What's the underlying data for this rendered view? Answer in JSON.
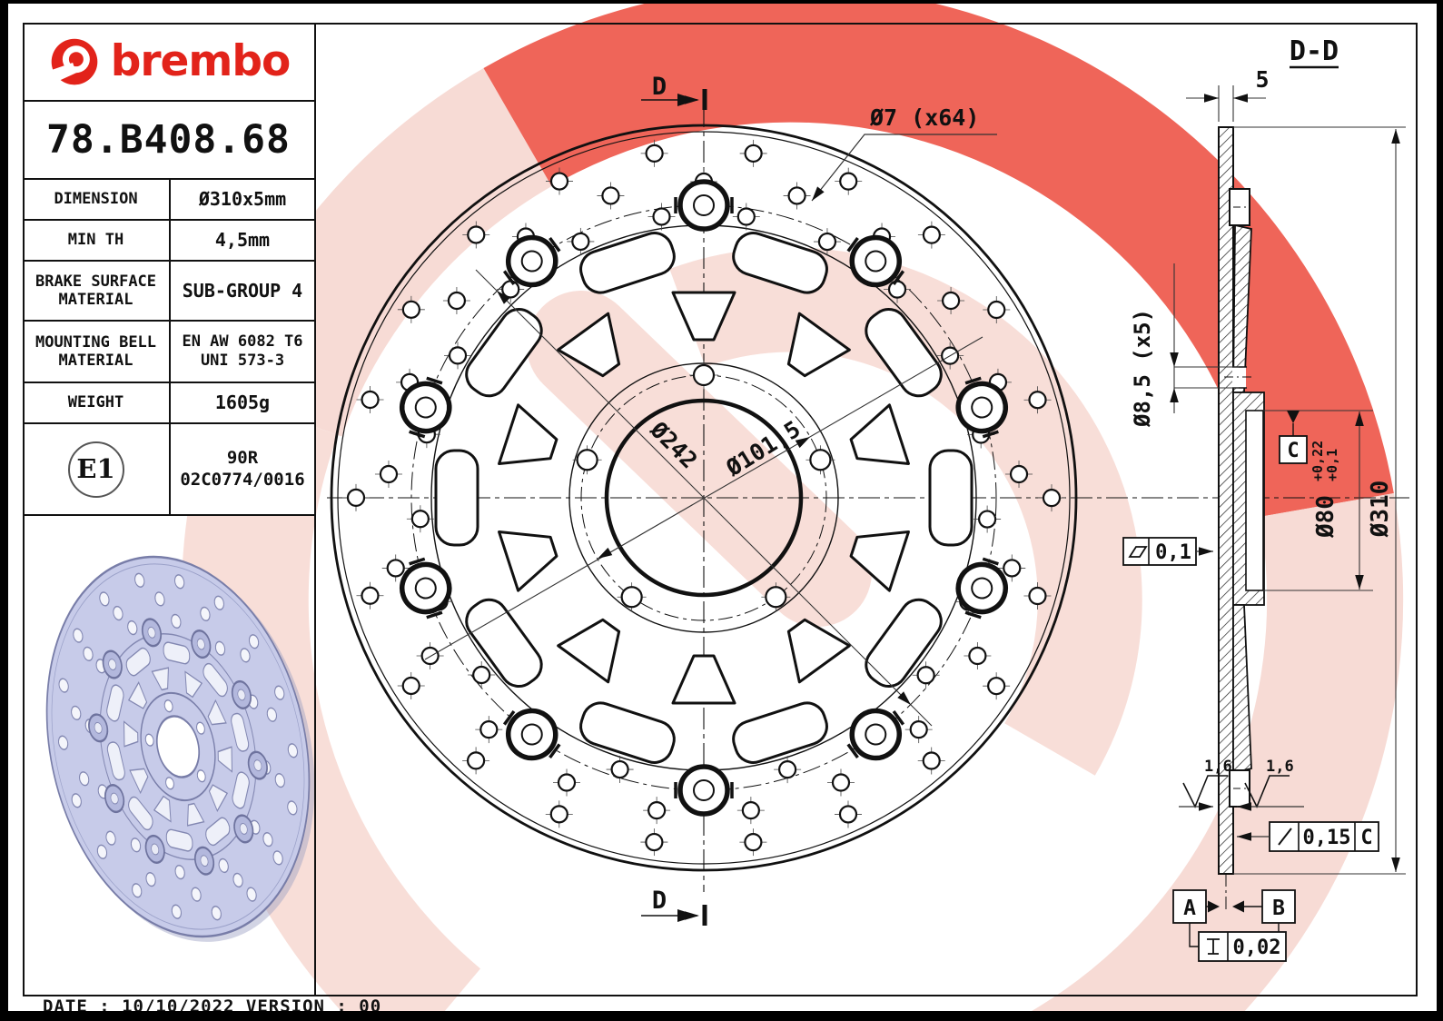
{
  "brand": {
    "name": "brembo",
    "part_number": "78.B408.68"
  },
  "spec_table": {
    "rows": [
      {
        "label": "DIMENSION",
        "value": "Ø310x5mm"
      },
      {
        "label": "MIN TH",
        "value": "4,5mm"
      },
      {
        "label": "BRAKE SURFACE\nMATERIAL",
        "value": "SUB-GROUP 4"
      },
      {
        "label": "MOUNTING BELL\nMATERIAL",
        "value": "EN AW 6082 T6\nUNI 573-3"
      },
      {
        "label": "WEIGHT",
        "value": "1605g"
      }
    ],
    "homologation": {
      "mark": "E1",
      "value": "90R\n02C0774/0016"
    }
  },
  "front_view": {
    "section_cut_top": "D",
    "section_cut_bottom": "D",
    "hole_callout": "Ø7 (x64)",
    "bobbin_pitch_dia": "Ø242",
    "bolt_circle_dia": "Ø101,5"
  },
  "section_view": {
    "title": "D-D",
    "disc_thickness": "5",
    "bell_hole_callout": "Ø8,5 (x5)",
    "bore_dia": "Ø80",
    "bore_tol_upper": "+0,22",
    "bore_tol_lower": "+0,1",
    "outer_dia": "Ø310",
    "flatness_tol": "0,1",
    "roughness_left": "1,6",
    "roughness_right": "1,6",
    "runout_tol": "0,15",
    "runout_datum": "C",
    "datum_c_label": "C",
    "datum_a_label": "A",
    "datum_b_label": "B",
    "thickness_variation_tol": "0,02"
  },
  "footer": {
    "date_line": "DATE : 10/10/2022 VERSION : 00"
  },
  "colors": {
    "brand_red": "#e2231a",
    "watermark_red": "#ec4a3c",
    "watermark_pink": "#f7dbd5",
    "render_body": "#c7cbe9",
    "render_edge": "#787da8",
    "line": "#111111"
  }
}
